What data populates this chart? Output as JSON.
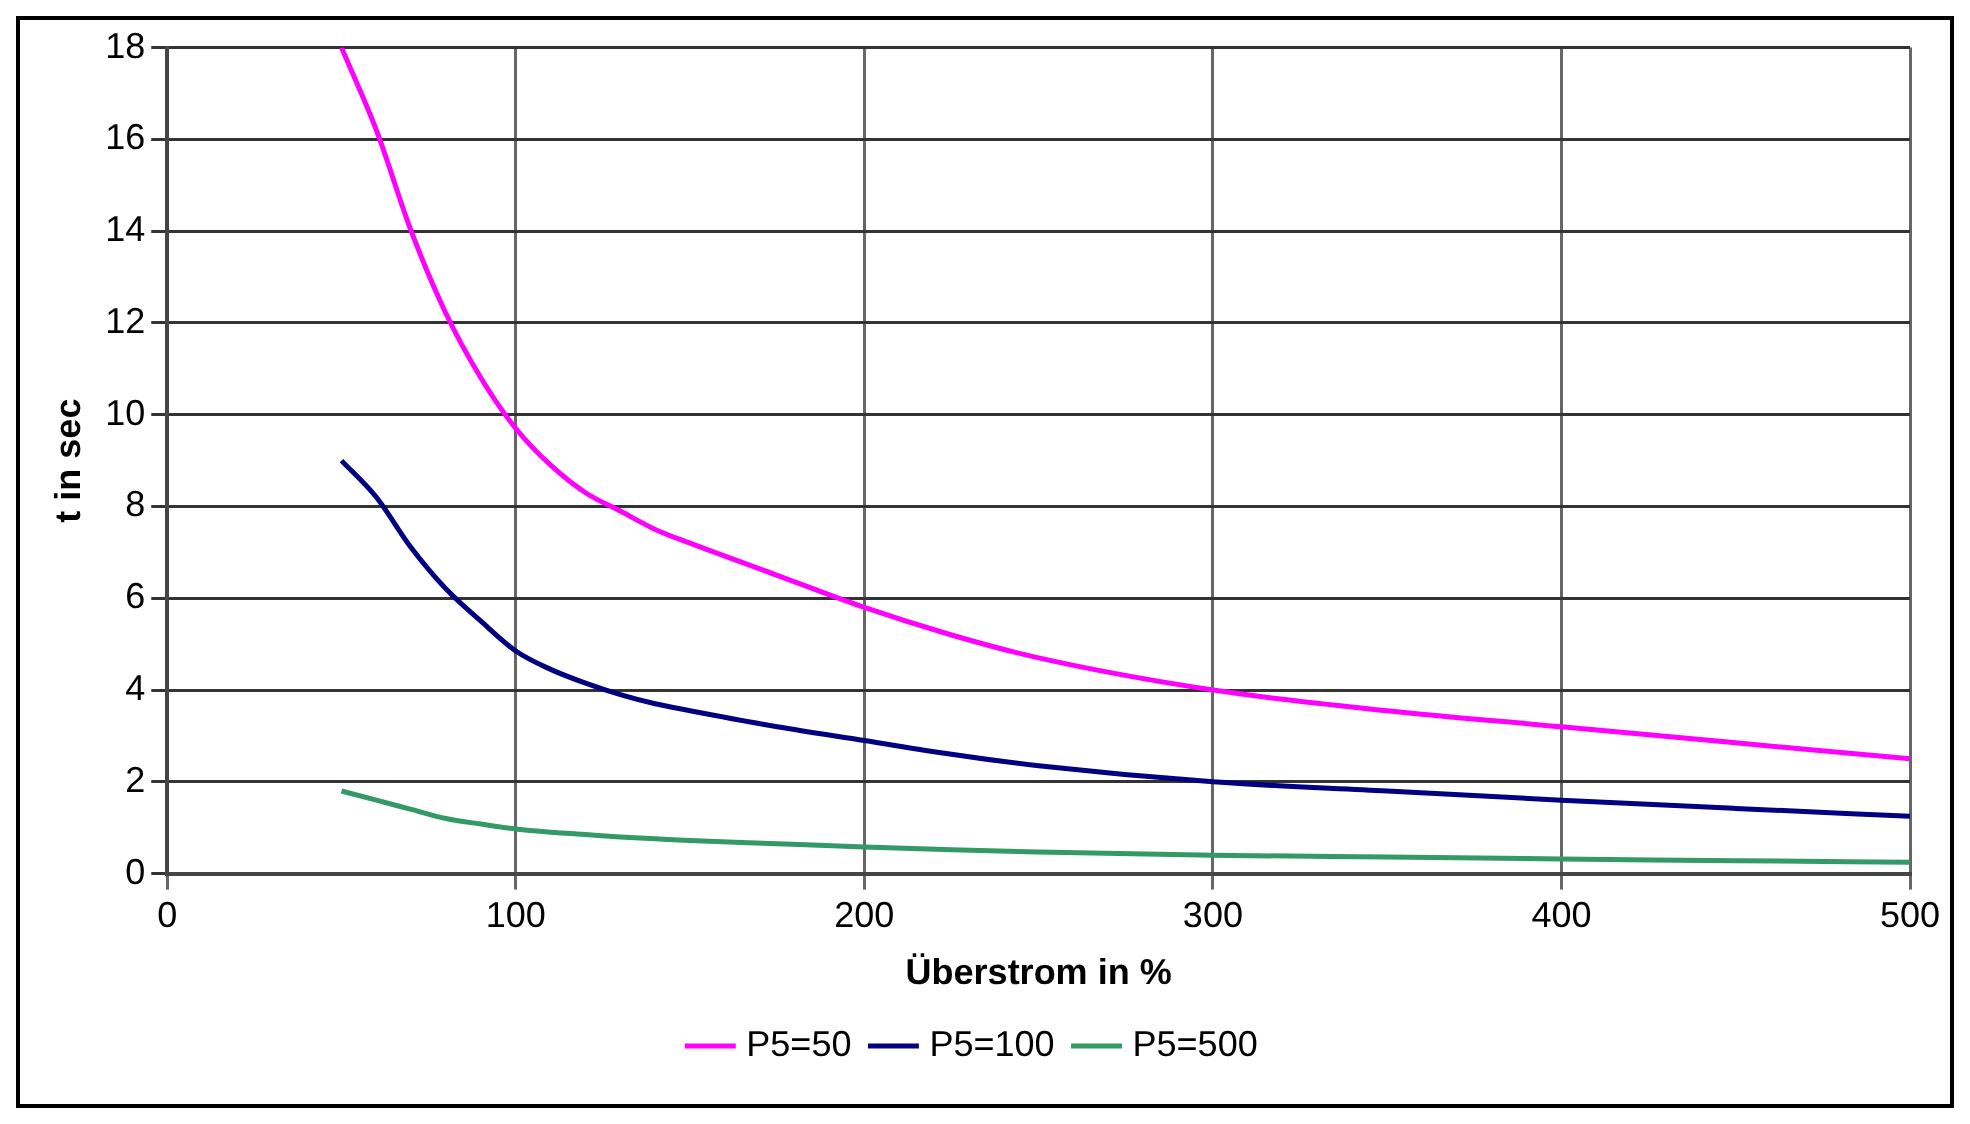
{
  "chart_data": {
    "type": "line",
    "xlabel": "Überstrom in %",
    "ylabel": "t in sec",
    "x": [
      50,
      60,
      70,
      80,
      90,
      100,
      110,
      120,
      130,
      140,
      150,
      175,
      200,
      225,
      250,
      300,
      350,
      400,
      450,
      500
    ],
    "series": [
      {
        "name": "P5=50",
        "color": "#ff00ff",
        "values": [
          18,
          16.2,
          14,
          12.2,
          10.8,
          9.7,
          8.9,
          8.3,
          7.9,
          7.5,
          7.2,
          6.5,
          5.8,
          5.2,
          4.7,
          4.0,
          3.55,
          3.2,
          2.85,
          2.5
        ]
      },
      {
        "name": "P5=100",
        "color": "#000080",
        "values": [
          9,
          8.2,
          7.1,
          6.2,
          5.5,
          4.85,
          4.45,
          4.15,
          3.9,
          3.7,
          3.55,
          3.2,
          2.9,
          2.6,
          2.35,
          2.0,
          1.8,
          1.6,
          1.42,
          1.25
        ]
      },
      {
        "name": "P5=500",
        "color": "#339966",
        "values": [
          1.8,
          1.6,
          1.4,
          1.2,
          1.08,
          0.97,
          0.9,
          0.85,
          0.8,
          0.76,
          0.72,
          0.65,
          0.58,
          0.52,
          0.47,
          0.4,
          0.36,
          0.32,
          0.28,
          0.25
        ]
      }
    ],
    "xlim": [
      0,
      500
    ],
    "xticks": [
      0,
      100,
      200,
      300,
      400,
      500
    ],
    "ylim": [
      0,
      18
    ],
    "yticks": [
      0,
      2,
      4,
      6,
      8,
      10,
      12,
      14,
      16,
      18
    ],
    "grid": true,
    "legend": "bottom",
    "marker": "none",
    "line_style": "solid"
  }
}
